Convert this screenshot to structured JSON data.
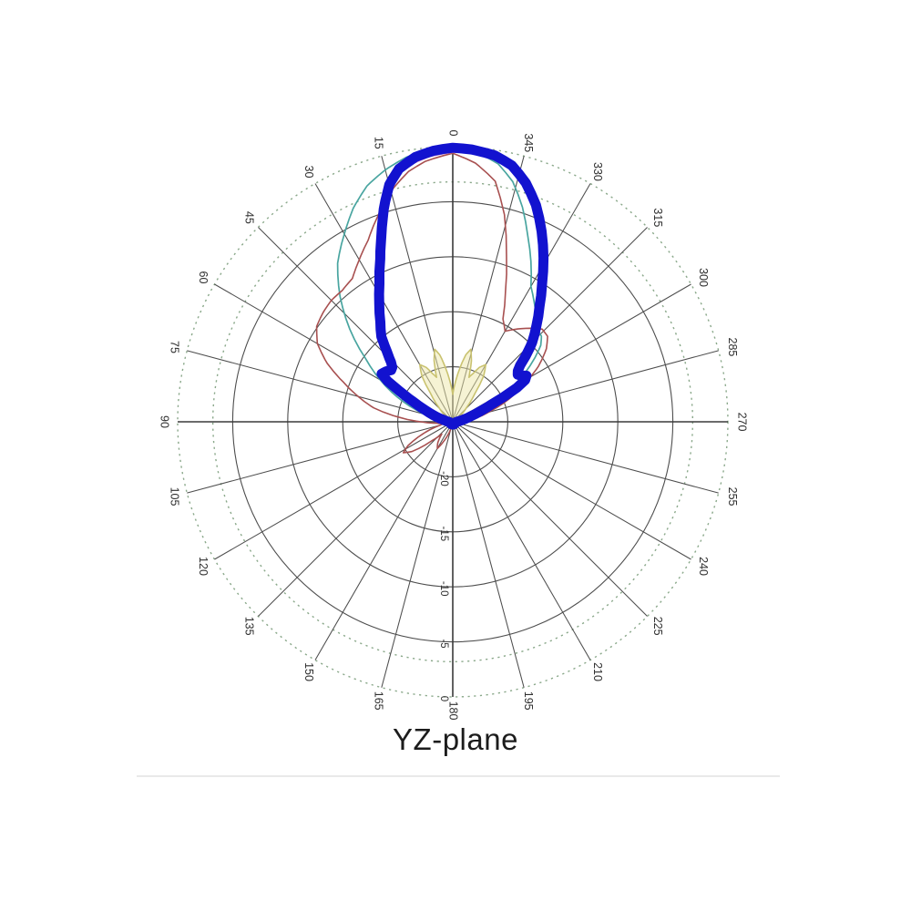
{
  "chart_data": {
    "type": "polar-radiation-pattern",
    "title": "YZ-plane",
    "angle_unit": "degrees",
    "angle_zero_position": "top",
    "angle_direction": "counterclockwise",
    "angle_tick_step_deg": 15,
    "angle_labels": [
      "0",
      "15",
      "30",
      "45",
      "60",
      "75",
      "90",
      "105",
      "120",
      "135",
      "150",
      "165",
      "180",
      "195",
      "210",
      "225",
      "240",
      "255",
      "270",
      "285",
      "300",
      "315",
      "330",
      "345"
    ],
    "radial_axis": {
      "unit": "dB",
      "min": -25,
      "max": 0,
      "tick_labels": [
        "-20",
        "-15",
        "-10",
        "-5",
        "0"
      ],
      "tick_values": [
        -20,
        -15,
        -10,
        -5,
        0
      ],
      "solid_rings_db": [
        -20,
        -15,
        -10,
        -5
      ],
      "dashed_rings_db": [
        -3.2,
        0
      ],
      "grid_color": "#4d4d4d",
      "dashed_ring_color": "#8aa88a",
      "label_color": "#2f2f2f"
    },
    "series": [
      {
        "name": "pattern-yellow",
        "color": "#c9c270",
        "stroke_width": 1.6,
        "fill": "rgba(238,232,170,0.5)",
        "points": [
          [
            0,
            -22.5
          ],
          [
            4,
            -21.3
          ],
          [
            8,
            -19.9
          ],
          [
            11,
            -18.8
          ],
          [
            14,
            -18.2
          ],
          [
            17,
            -19.2
          ],
          [
            20,
            -20.7
          ],
          [
            23,
            -20.2
          ],
          [
            26,
            -19.5
          ],
          [
            30,
            -19.0
          ],
          [
            34,
            -20.0
          ],
          [
            38,
            -21.7
          ],
          [
            44,
            -23.2
          ],
          [
            52,
            -24.2
          ],
          [
            60,
            -24.5
          ],
          [
            90,
            -24.7
          ],
          [
            180,
            -24.75
          ],
          [
            270,
            -24.7
          ],
          [
            300,
            -24.5
          ],
          [
            308,
            -24.2
          ],
          [
            316,
            -23.2
          ],
          [
            322,
            -21.7
          ],
          [
            326,
            -20.0
          ],
          [
            330,
            -19.0
          ],
          [
            334,
            -19.5
          ],
          [
            337,
            -20.2
          ],
          [
            340,
            -20.7
          ],
          [
            343,
            -19.2
          ],
          [
            346,
            -18.2
          ],
          [
            349,
            -18.8
          ],
          [
            352,
            -19.9
          ],
          [
            356,
            -21.3
          ],
          [
            360,
            -22.5
          ]
        ]
      },
      {
        "name": "pattern-teal",
        "color": "#49a5a0",
        "stroke_width": 1.7,
        "fill": "none",
        "points": [
          [
            0,
            -0.05
          ],
          [
            5,
            -0.2
          ],
          [
            10,
            -0.6
          ],
          [
            15,
            -1.3
          ],
          [
            20,
            -2.2
          ],
          [
            25,
            -3.6
          ],
          [
            30,
            -5.3
          ],
          [
            36,
            -7.2
          ],
          [
            42,
            -9.7
          ],
          [
            48,
            -12.4
          ],
          [
            54,
            -15.2
          ],
          [
            60,
            -17.4
          ],
          [
            66,
            -19.5
          ],
          [
            72,
            -21.5
          ],
          [
            78,
            -23.0
          ],
          [
            84,
            -24.0
          ],
          [
            90,
            -24.5
          ],
          [
            110,
            -24.7
          ],
          [
            180,
            -24.75
          ],
          [
            250,
            -24.7
          ],
          [
            276,
            -24.4
          ],
          [
            282,
            -24.2
          ],
          [
            287,
            -23.3
          ],
          [
            292,
            -22.0
          ],
          [
            296,
            -20.4
          ],
          [
            300,
            -18.8
          ],
          [
            304,
            -17.1
          ],
          [
            308,
            -15.5
          ],
          [
            311,
            -14.4
          ],
          [
            314,
            -13.8
          ],
          [
            318,
            -13.6
          ],
          [
            322,
            -12.7
          ],
          [
            326,
            -11.8
          ],
          [
            330,
            -10.8
          ],
          [
            334,
            -8.8
          ],
          [
            338,
            -6.8
          ],
          [
            342,
            -4.5
          ],
          [
            346,
            -2.5
          ],
          [
            350,
            -1.2
          ],
          [
            355,
            -0.4
          ],
          [
            360,
            -0.05
          ]
        ]
      },
      {
        "name": "pattern-red",
        "color": "#a85050",
        "stroke_width": 1.6,
        "fill": "none",
        "points": [
          [
            0,
            -0.6
          ],
          [
            6,
            -1.2
          ],
          [
            10,
            -1.9
          ],
          [
            15,
            -3.3
          ],
          [
            20,
            -5.1
          ],
          [
            25,
            -6.8
          ],
          [
            30,
            -8.0
          ],
          [
            35,
            -9.1
          ],
          [
            40,
            -9.4
          ],
          [
            45,
            -9.4
          ],
          [
            50,
            -9.6
          ],
          [
            55,
            -9.9
          ],
          [
            60,
            -10.8
          ],
          [
            65,
            -12.4
          ],
          [
            70,
            -14.4
          ],
          [
            75,
            -16.1
          ],
          [
            80,
            -17.7
          ],
          [
            85,
            -20.0
          ],
          [
            90,
            -22.1
          ],
          [
            95,
            -23.5
          ],
          [
            100,
            -24.2
          ],
          [
            105,
            -23.8
          ],
          [
            112,
            -22.1
          ],
          [
            118,
            -20.4
          ],
          [
            122,
            -19.7
          ],
          [
            126,
            -20.4
          ],
          [
            132,
            -22.4
          ],
          [
            138,
            -23.5
          ],
          [
            144,
            -22.7
          ],
          [
            150,
            -22.2
          ],
          [
            156,
            -23.2
          ],
          [
            164,
            -24.3
          ],
          [
            172,
            -24.7
          ],
          [
            180,
            -24.75
          ],
          [
            200,
            -24.7
          ],
          [
            220,
            -24.7
          ],
          [
            240,
            -24.6
          ],
          [
            252,
            -24.5
          ],
          [
            260,
            -24.3
          ],
          [
            268,
            -24.0
          ],
          [
            274,
            -23.5
          ],
          [
            280,
            -22.7
          ],
          [
            286,
            -21.4
          ],
          [
            292,
            -19.5
          ],
          [
            298,
            -17.6
          ],
          [
            303,
            -15.7
          ],
          [
            308,
            -14.2
          ],
          [
            312,
            -13.4
          ],
          [
            316,
            -13.3
          ],
          [
            320,
            -13.9
          ],
          [
            325,
            -14.7
          ],
          [
            330,
            -15.5
          ],
          [
            334,
            -14.6
          ],
          [
            338,
            -12.2
          ],
          [
            342,
            -9.2
          ],
          [
            346,
            -5.6
          ],
          [
            350,
            -2.8
          ],
          [
            355,
            -1.4
          ],
          [
            360,
            -0.6
          ]
        ]
      },
      {
        "name": "pattern-magenta",
        "color": "#cf84c8",
        "stroke_width": 1.7,
        "fill": "none",
        "points": [
          [
            0,
            -0.5
          ],
          [
            5,
            -0.8
          ],
          [
            10,
            -1.4
          ],
          [
            14,
            -2.5
          ],
          [
            17,
            -4.2
          ],
          [
            20,
            -6.3
          ],
          [
            24,
            -8.6
          ],
          [
            28,
            -10.6
          ],
          [
            32,
            -12.2
          ],
          [
            36,
            -13.6
          ],
          [
            40,
            -14.8
          ],
          [
            44,
            -16.2
          ],
          [
            48,
            -17.4
          ],
          [
            52,
            -17.6
          ],
          [
            56,
            -17.4
          ],
          [
            60,
            -19.0
          ],
          [
            64,
            -20.8
          ],
          [
            68,
            -22.2
          ],
          [
            74,
            -23.4
          ],
          [
            82,
            -24.3
          ],
          [
            95,
            -24.7
          ],
          [
            180,
            -24.75
          ],
          [
            265,
            -24.7
          ],
          [
            276,
            -24.3
          ],
          [
            283,
            -23.6
          ],
          [
            288,
            -22.6
          ],
          [
            292,
            -21.4
          ],
          [
            295,
            -20.0
          ],
          [
            298,
            -18.6
          ],
          [
            301,
            -17.5
          ],
          [
            304,
            -17.2
          ],
          [
            307,
            -17.6
          ],
          [
            310,
            -16.9
          ],
          [
            313,
            -15.9
          ],
          [
            316,
            -14.6
          ],
          [
            320,
            -13.2
          ],
          [
            324,
            -11.6
          ],
          [
            328,
            -9.8
          ],
          [
            332,
            -7.7
          ],
          [
            336,
            -5.6
          ],
          [
            340,
            -3.6
          ],
          [
            344,
            -2.0
          ],
          [
            348,
            -0.9
          ],
          [
            353,
            -0.35
          ],
          [
            360,
            -0.5
          ]
        ]
      },
      {
        "name": "pattern-main-blue",
        "color": "#1212cf",
        "stroke_width": 11,
        "fill": "none",
        "points": [
          [
            0,
            -0.1
          ],
          [
            4,
            -0.3
          ],
          [
            8,
            -0.7
          ],
          [
            12,
            -1.5
          ],
          [
            15,
            -2.7
          ],
          [
            18,
            -4.7
          ],
          [
            21,
            -6.9
          ],
          [
            24,
            -8.8
          ],
          [
            28,
            -10.8
          ],
          [
            32,
            -12.4
          ],
          [
            36,
            -13.8
          ],
          [
            40,
            -14.9
          ],
          [
            43,
            -16.2
          ],
          [
            46,
            -17.2
          ],
          [
            48,
            -17.6
          ],
          [
            50,
            -17.7
          ],
          [
            53,
            -17.4
          ],
          [
            56,
            -17.2
          ],
          [
            58,
            -18.0
          ],
          [
            60,
            -19.4
          ],
          [
            63,
            -21.0
          ],
          [
            67,
            -22.3
          ],
          [
            72,
            -23.3
          ],
          [
            78,
            -24.1
          ],
          [
            85,
            -24.5
          ],
          [
            95,
            -24.7
          ],
          [
            130,
            -24.75
          ],
          [
            180,
            -24.75
          ],
          [
            230,
            -24.75
          ],
          [
            265,
            -24.7
          ],
          [
            275,
            -24.5
          ],
          [
            281,
            -24.1
          ],
          [
            287,
            -23.3
          ],
          [
            291,
            -22.3
          ],
          [
            294,
            -21.2
          ],
          [
            296,
            -19.9
          ],
          [
            298,
            -18.4
          ],
          [
            300,
            -17.4
          ],
          [
            302,
            -17.1
          ],
          [
            304,
            -17.5
          ],
          [
            306,
            -17.7
          ],
          [
            308,
            -17.5
          ],
          [
            310,
            -17.0
          ],
          [
            312,
            -16.1
          ],
          [
            315,
            -14.8
          ],
          [
            319,
            -13.4
          ],
          [
            323,
            -11.9
          ],
          [
            327,
            -10.1
          ],
          [
            331,
            -8.0
          ],
          [
            335,
            -5.9
          ],
          [
            339,
            -3.9
          ],
          [
            343,
            -2.3
          ],
          [
            347,
            -1.1
          ],
          [
            351,
            -0.5
          ],
          [
            356,
            -0.2
          ],
          [
            360,
            -0.1
          ]
        ]
      }
    ]
  }
}
